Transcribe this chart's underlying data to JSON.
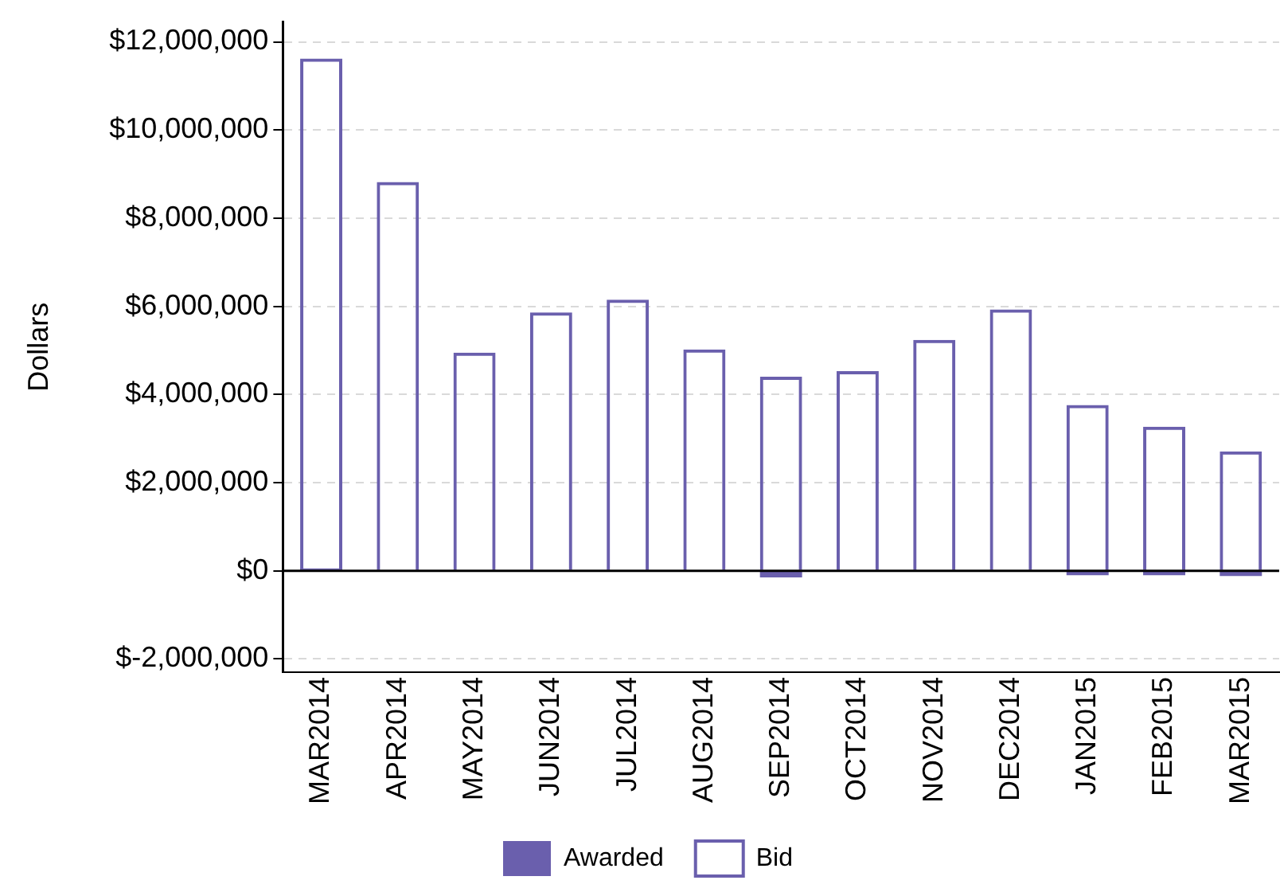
{
  "chart_data": {
    "type": "bar",
    "ylabel": "Dollars",
    "categories": [
      "MAR2014",
      "APR2014",
      "MAY2014",
      "JUN2014",
      "JUL2014",
      "AUG2014",
      "SEP2014",
      "OCT2014",
      "NOV2014",
      "DEC2014",
      "JAN2015",
      "FEB2015",
      "MAR2015"
    ],
    "series": [
      {
        "name": "Awarded",
        "color": "#6a5fad",
        "values": [
          50000,
          0,
          0,
          0,
          0,
          0,
          -150000,
          0,
          0,
          0,
          -100000,
          -100000,
          -120000
        ]
      },
      {
        "name": "Bid",
        "color": "#6a5fad",
        "values": [
          11620000,
          8820000,
          4950000,
          5860000,
          6150000,
          5020000,
          4400000,
          4530000,
          5240000,
          5930000,
          3760000,
          3270000,
          2710000
        ]
      }
    ],
    "ylim": [
      -2300000,
      12450000
    ],
    "yticks": [
      {
        "value": -2000000,
        "label": "$-2,000,000"
      },
      {
        "value": 0,
        "label": "$0"
      },
      {
        "value": 2000000,
        "label": "$2,000,000"
      },
      {
        "value": 4000000,
        "label": "$4,000,000"
      },
      {
        "value": 6000000,
        "label": "$6,000,000"
      },
      {
        "value": 8000000,
        "label": "$8,000,000"
      },
      {
        "value": 10000000,
        "label": "$10,000,000"
      },
      {
        "value": 12000000,
        "label": "$12,000,000"
      }
    ],
    "grid": "y",
    "legend": "bottom"
  }
}
